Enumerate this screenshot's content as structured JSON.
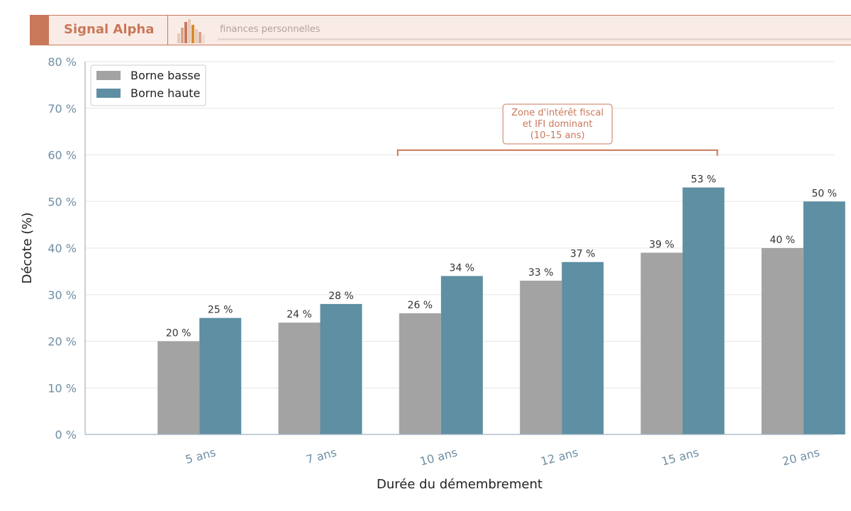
{
  "header": {
    "brand": "Signal Alpha",
    "subtitle": "finances personnelles",
    "logo_icon": "books-bar-logo-icon"
  },
  "colors": {
    "accent": "#c9785a",
    "low": "#a3a3a3",
    "high": "#5e8fa3",
    "axis_text": "#6f8ea3"
  },
  "chart_data": {
    "type": "bar",
    "xlabel": "Durée du démembrement",
    "ylabel": "Décote (%)",
    "ylim": [
      0,
      80
    ],
    "yticks": [
      0,
      10,
      20,
      30,
      40,
      50,
      60,
      70,
      80
    ],
    "ytick_labels": [
      "0 %",
      "10 %",
      "20 %",
      "30 %",
      "40 %",
      "50 %",
      "60 %",
      "70 %",
      "80 %"
    ],
    "categories": [
      "5 ans",
      "7 ans",
      "10 ans",
      "12 ans",
      "15 ans",
      "20 ans"
    ],
    "series": [
      {
        "name": "Borne basse",
        "values": [
          20,
          24,
          26,
          33,
          39,
          40
        ],
        "labels": [
          "20 %",
          "24 %",
          "26 %",
          "33 %",
          "39 %",
          "40 %"
        ]
      },
      {
        "name": "Borne haute",
        "values": [
          25,
          28,
          34,
          37,
          53,
          50
        ],
        "labels": [
          "25 %",
          "28 %",
          "34 %",
          "37 %",
          "53 %",
          "50 %"
        ]
      }
    ],
    "legend_position": "top-left",
    "grid": "horizontal",
    "annotation": {
      "text": [
        "Zone d'intérêt fiscal",
        "et IFI dominant",
        "(10–15 ans)"
      ],
      "from_category": "10 ans",
      "to_category": "15 ans"
    }
  }
}
